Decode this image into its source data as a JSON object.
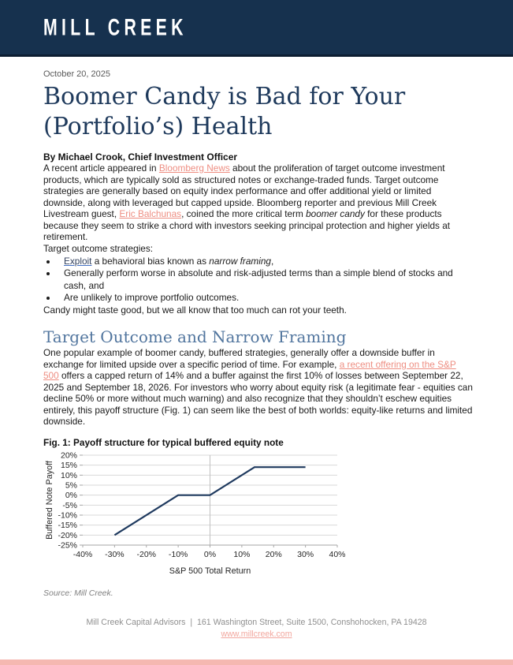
{
  "colors": {
    "masthead_navy": "#16314e",
    "masthead_edge": "#0c1d31",
    "title_navy": "#1f3a5c",
    "heading_blue": "#51759e",
    "link_salmon": "#ee8e82",
    "footer_link_pink": "#f2a79e",
    "bottom_bar_pink": "#f5b8b1"
  },
  "header": {
    "logo": "MILL CREEK"
  },
  "article": {
    "date": "October 20, 2025",
    "title_line1": "Boomer Candy is Bad for Your",
    "title_line2": "(Portfolio’s) Health",
    "byline": "By Michael Crook, Chief Investment Officer",
    "intro": {
      "segments": [
        {
          "style": "plain",
          "text": "A recent article appeared in "
        },
        {
          "style": "link",
          "text": "Bloomberg News"
        },
        {
          "style": "plain",
          "text": " about the proliferation of target outcome investment products, which are typically sold as structured notes or exchange-traded funds. Target outcome strategies are generally based on equity index performance and offer additional yield or limited downside, along with leveraged but capped upside. Bloomberg reporter and previous Mill Creek Livestream guest, "
        },
        {
          "style": "link",
          "text": "Eric Balchunas"
        },
        {
          "style": "plain",
          "text": ", coined the more critical term "
        },
        {
          "style": "italic",
          "text": "boomer candy"
        },
        {
          "style": "plain",
          "text": " for these products because they seem to strike a chord with investors seeking principal protection and higher yields at retirement."
        }
      ]
    },
    "list_intro": "Target outcome strategies:",
    "bullets": [
      {
        "segments": [
          {
            "style": "link-dark",
            "text": "Exploit"
          },
          {
            "style": "plain",
            "text": " a behavioral bias known as "
          },
          {
            "style": "italic",
            "text": "narrow framing"
          },
          {
            "style": "plain",
            "text": ","
          }
        ]
      },
      {
        "segments": [
          {
            "style": "plain",
            "text": "Generally perform worse in absolute and risk-adjusted terms than a simple blend of stocks and cash, and"
          }
        ]
      },
      {
        "segments": [
          {
            "style": "plain",
            "text": "Are unlikely to improve portfolio outcomes."
          }
        ]
      }
    ],
    "candy_line": "Candy might taste good, but we all know that too much can rot your teeth.",
    "section_heading": "Target Outcome and Narrow Framing",
    "section_para": {
      "segments": [
        {
          "style": "plain",
          "text": "One popular example of boomer candy, buffered strategies, generally offer a downside buffer in exchange for limited upside over a specific period of time. For example, "
        },
        {
          "style": "link",
          "text": "a recent offering on the S&P 500"
        },
        {
          "style": "plain",
          "text": " offers a capped return of 14% and a buffer against the first 10% of losses between September 22, 2025 and September 18, 2026. For investors who worry about equity risk (a legitimate fear - equities can decline 50% or more without much warning) and also recognize that they shouldn’t eschew equities entirely, this payoff structure (Fig. 1) can seem like the best of both worlds: equity-like returns and limited downside."
        }
      ]
    },
    "figure_caption": "Fig. 1: Payoff structure for typical buffered equity note",
    "source_note": "Source: Mill Creek."
  },
  "chart_data": {
    "type": "line",
    "title": "Fig. 1: Payoff structure for typical buffered equity note",
    "xlabel": "S&P 500 Total Return",
    "ylabel": "Buffered Note Payoff",
    "xlim": [
      -40,
      40
    ],
    "ylim": [
      -25,
      20
    ],
    "x_ticks": [
      -40,
      -30,
      -20,
      -10,
      0,
      10,
      20,
      30,
      40
    ],
    "y_ticks": [
      20,
      15,
      10,
      5,
      0,
      -5,
      -10,
      -15,
      -20,
      -25
    ],
    "tick_suffix": "%",
    "grid": "horizontal gridlines at every y tick; single vertical gridline at x=0; legend off",
    "series": [
      {
        "name": "Buffered note payoff",
        "points": [
          [
            -30,
            -20
          ],
          [
            -10,
            0
          ],
          [
            0,
            0
          ],
          [
            14,
            14
          ],
          [
            30,
            14
          ]
        ],
        "color": "#1f3a5f"
      }
    ],
    "colors": {
      "grid": "#d9d9d9",
      "zeroline": "#c0c0c0",
      "axis": "#a6a6a6",
      "text": "#262626"
    }
  },
  "footer": {
    "line1": "Mill Creek Capital Advisors  |  161 Washington Street, Suite 1500, Conshohocken, PA 19428",
    "link": "www.millcreek.com"
  }
}
